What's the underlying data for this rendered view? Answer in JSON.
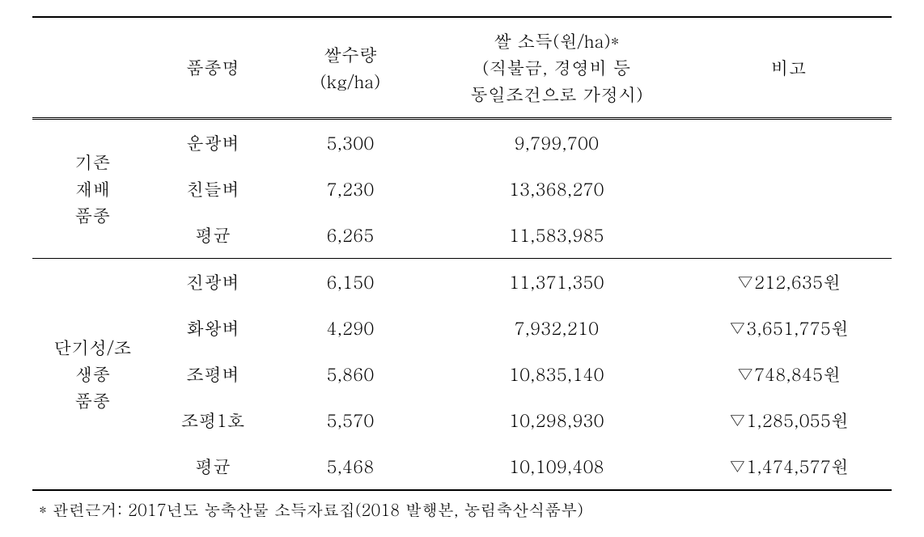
{
  "table": {
    "headers": {
      "category": "",
      "variety": "품종명",
      "yield": "쌀수량\n(kg/ha)",
      "income": "쌀 소득(원/ha)*\n(직불금, 경영비 등\n동일조건으로 가정시)",
      "remark": "비고"
    },
    "categories": [
      {
        "label": "기존\n재배\n품종",
        "rowspan": 3,
        "rows": [
          {
            "variety": "운광벼",
            "yield": "5,300",
            "income": "9,799,700",
            "remark": ""
          },
          {
            "variety": "친들벼",
            "yield": "7,230",
            "income": "13,368,270",
            "remark": ""
          },
          {
            "variety": "평균",
            "yield": "6,265",
            "income": "11,583,985",
            "remark": ""
          }
        ]
      },
      {
        "label": "단기성/조\n생종\n품종",
        "rowspan": 5,
        "rows": [
          {
            "variety": "진광벼",
            "yield": "6,150",
            "income": "11,371,350",
            "remark": "▽212,635원"
          },
          {
            "variety": "화왕벼",
            "yield": "4,290",
            "income": "7,932,210",
            "remark": "▽3,651,775원"
          },
          {
            "variety": "조평벼",
            "yield": "5,860",
            "income": "10,835,140",
            "remark": "▽748,845원"
          },
          {
            "variety": "조평1호",
            "yield": "5,570",
            "income": "10,298,930",
            "remark": "▽1,285,055원"
          },
          {
            "variety": "평균",
            "yield": "5,468",
            "income": "10,109,408",
            "remark": "▽1,474,577원"
          }
        ]
      }
    ],
    "footnote": "* 관련근거: 2017년도 농축산물 소득자료집(2018 발행본, 농림축산식품부)"
  },
  "colors": {
    "text": "#000000",
    "background": "#ffffff",
    "border": "#000000"
  },
  "fonts": {
    "body_size": 22,
    "footnote_size": 20,
    "family": "Batang"
  }
}
